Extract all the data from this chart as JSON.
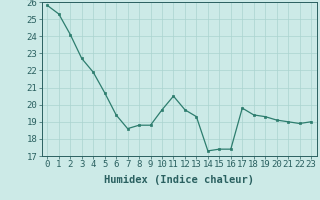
{
  "x": [
    0,
    1,
    2,
    3,
    4,
    5,
    6,
    7,
    8,
    9,
    10,
    11,
    12,
    13,
    14,
    15,
    16,
    17,
    18,
    19,
    20,
    21,
    22,
    23
  ],
  "y": [
    25.8,
    25.3,
    24.1,
    22.7,
    21.9,
    20.7,
    19.4,
    18.6,
    18.8,
    18.8,
    19.7,
    20.5,
    19.7,
    19.3,
    17.3,
    17.4,
    17.4,
    19.8,
    19.4,
    19.3,
    19.1,
    19.0,
    18.9,
    19.0
  ],
  "line_color": "#2d7d6e",
  "marker_color": "#2d7d6e",
  "bg_color": "#cceae7",
  "grid_color": "#aad4cf",
  "xlabel": "Humidex (Indice chaleur)",
  "ylim": [
    17,
    26
  ],
  "xlim": [
    -0.5,
    23.5
  ],
  "yticks": [
    17,
    18,
    19,
    20,
    21,
    22,
    23,
    24,
    25,
    26
  ],
  "xticks": [
    0,
    1,
    2,
    3,
    4,
    5,
    6,
    7,
    8,
    9,
    10,
    11,
    12,
    13,
    14,
    15,
    16,
    17,
    18,
    19,
    20,
    21,
    22,
    23
  ],
  "xtick_labels": [
    "0",
    "1",
    "2",
    "3",
    "4",
    "5",
    "6",
    "7",
    "8",
    "9",
    "10",
    "11",
    "12",
    "13",
    "14",
    "15",
    "16",
    "17",
    "18",
    "19",
    "20",
    "21",
    "22",
    "23"
  ],
  "font_color": "#2a6060",
  "tick_fontsize": 6.5,
  "label_fontsize": 7.5
}
